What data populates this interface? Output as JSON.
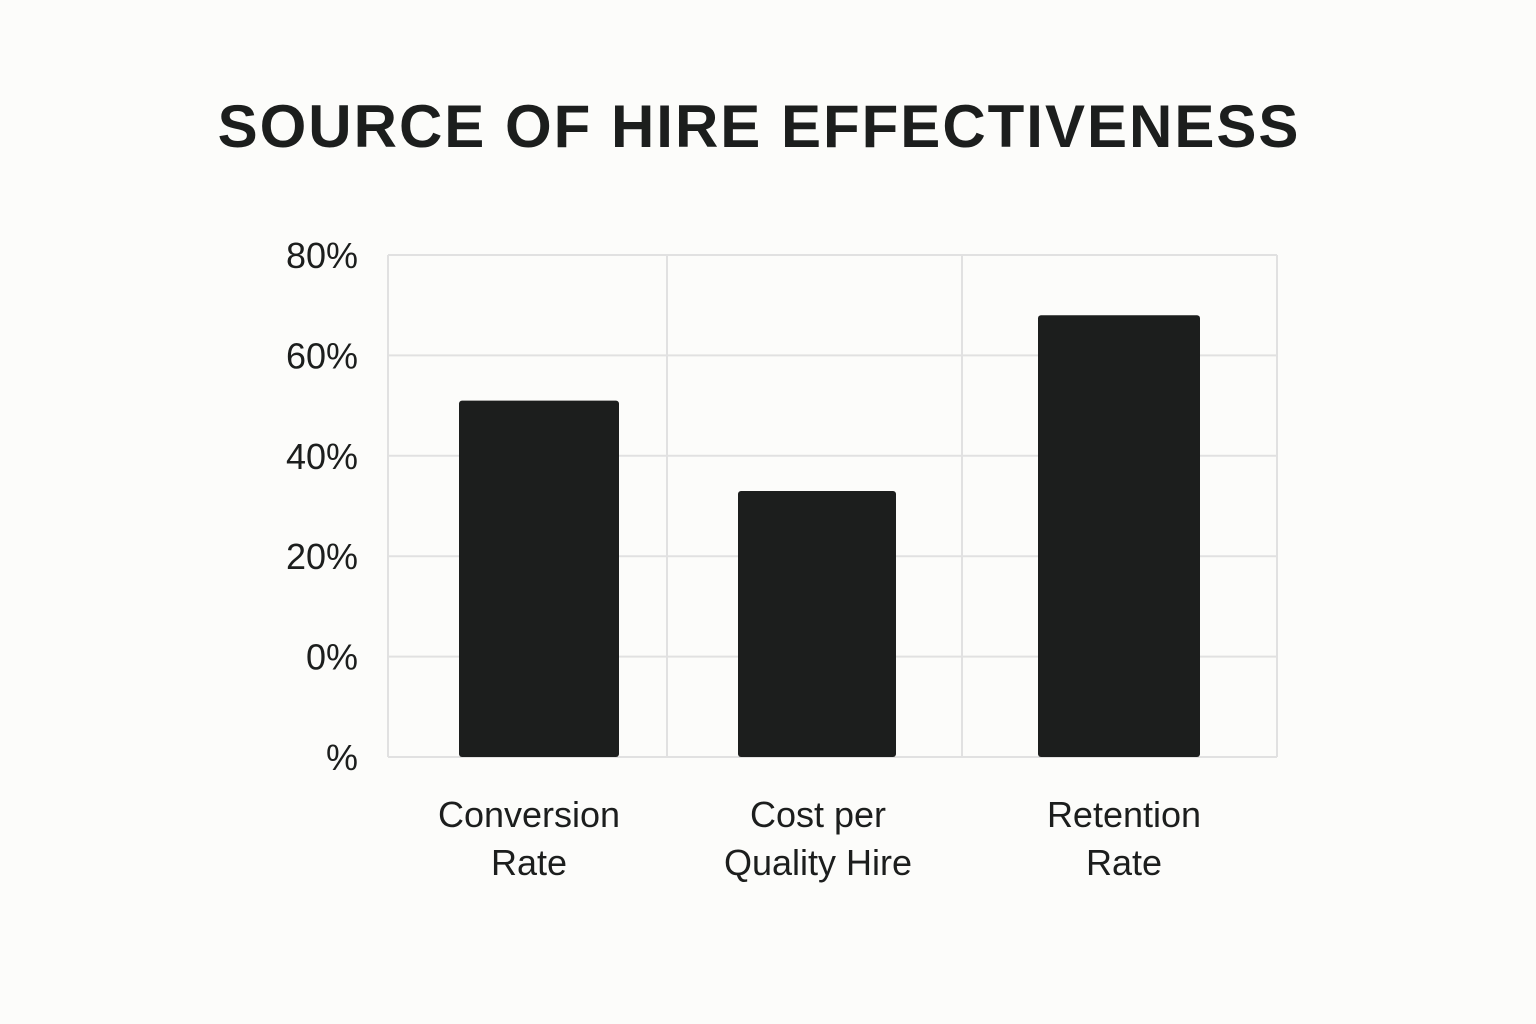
{
  "chart_data": {
    "type": "bar",
    "title": "SOURCE OF HIRE EFFECTIVENESS",
    "xlabel": "",
    "ylabel": "",
    "categories": [
      [
        "Conversion",
        "Rate"
      ],
      [
        "Cost per",
        "Quality Hire"
      ],
      [
        "Retention",
        "Rate"
      ]
    ],
    "values": [
      51,
      33,
      68
    ],
    "ylim": [
      0,
      80
    ],
    "ytick_labels": [
      "80%",
      "60%",
      "40%",
      "20%",
      "0%",
      "%"
    ],
    "grid": true,
    "bar_color": "#1c1e1d",
    "grid_color": "#e1e1e1",
    "text_color": "#1c1e1d",
    "background": "#fcfcfa"
  }
}
